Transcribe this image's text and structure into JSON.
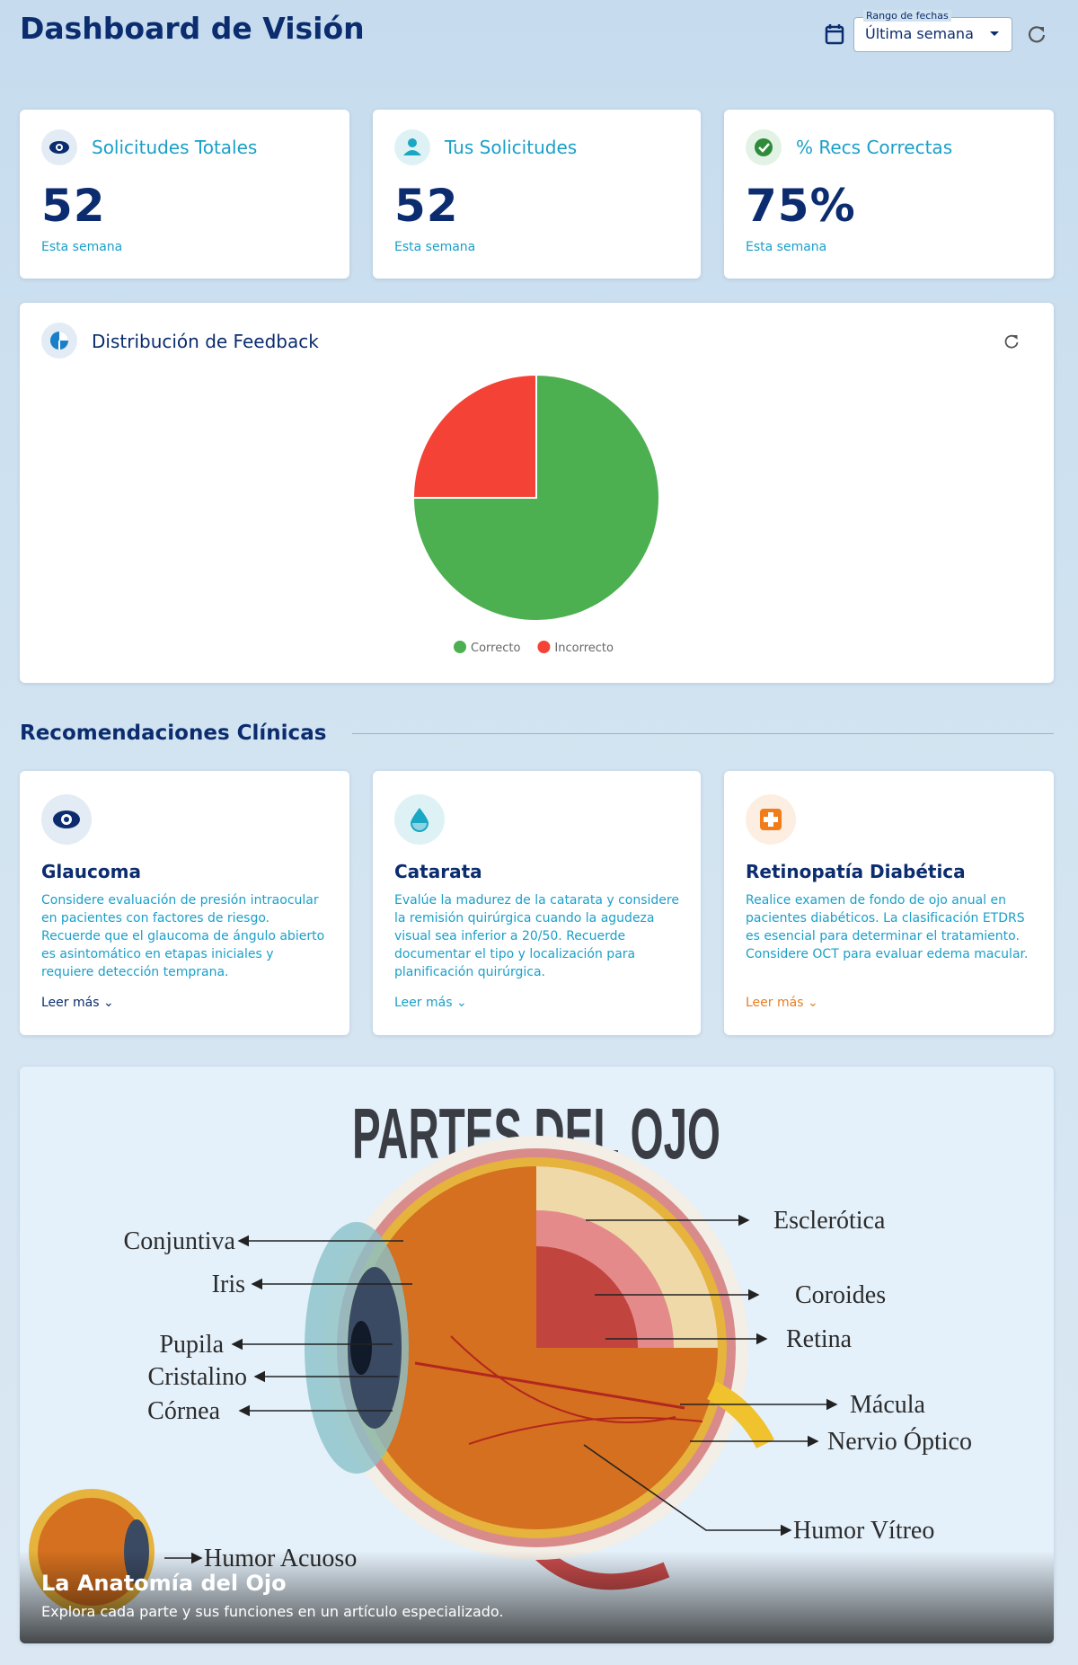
{
  "header": {
    "title": "Dashboard de Visión",
    "date_range_label": "Rango de fechas",
    "date_range_value": "Última semana"
  },
  "stats": [
    {
      "title": "Solicitudes Totales",
      "value": "52",
      "period": "Esta semana"
    },
    {
      "title": "Tus Solicitudes",
      "value": "52",
      "period": "Esta semana"
    },
    {
      "title": "% Recs Correctas",
      "value": "75%",
      "period": "Esta semana"
    }
  ],
  "chart_data": {
    "type": "pie",
    "title": "Distribución de Feedback",
    "categories": [
      "Correcto",
      "Incorrecto"
    ],
    "values": [
      75,
      25
    ],
    "colors": [
      "#4caf50",
      "#f44336"
    ]
  },
  "recommendations": {
    "heading": "Recomendaciones Clínicas",
    "items": [
      {
        "title": "Glaucoma",
        "text": "Considere evaluación de presión intraocular en pacientes con factores de riesgo. Recuerde que el glaucoma de ángulo abierto es asintomático en etapas iniciales y requiere detección temprana.",
        "link": "Leer más"
      },
      {
        "title": "Catarata",
        "text": "Evalúe la madurez de la catarata y considere la remisión quirúrgica cuando la agudeza visual sea inferior a 20/50. Recuerde documentar el tipo y localización para planificación quirúrgica.",
        "link": "Leer más"
      },
      {
        "title": "Retinopatía Diabética",
        "text": "Realice examen de fondo de ojo anual en pacientes diabéticos. La clasificación ETDRS es esencial para determinar el tratamiento. Considere OCT para evaluar edema macular.",
        "link": "Leer más"
      }
    ]
  },
  "anatomy": {
    "title": "PARTES DEL OJO",
    "labels": [
      "Esclerótica",
      "Conjuntiva",
      "Iris",
      "Coroides",
      "Retina",
      "Pupila",
      "Cristalino",
      "Córnea",
      "Mácula",
      "Nervio Óptico",
      "Humor Vítreo",
      "Humor Acuoso"
    ],
    "caption_title": "La Anatomía del Ojo",
    "caption_text": "Explora cada parte y sus funciones en un artículo especializado."
  }
}
